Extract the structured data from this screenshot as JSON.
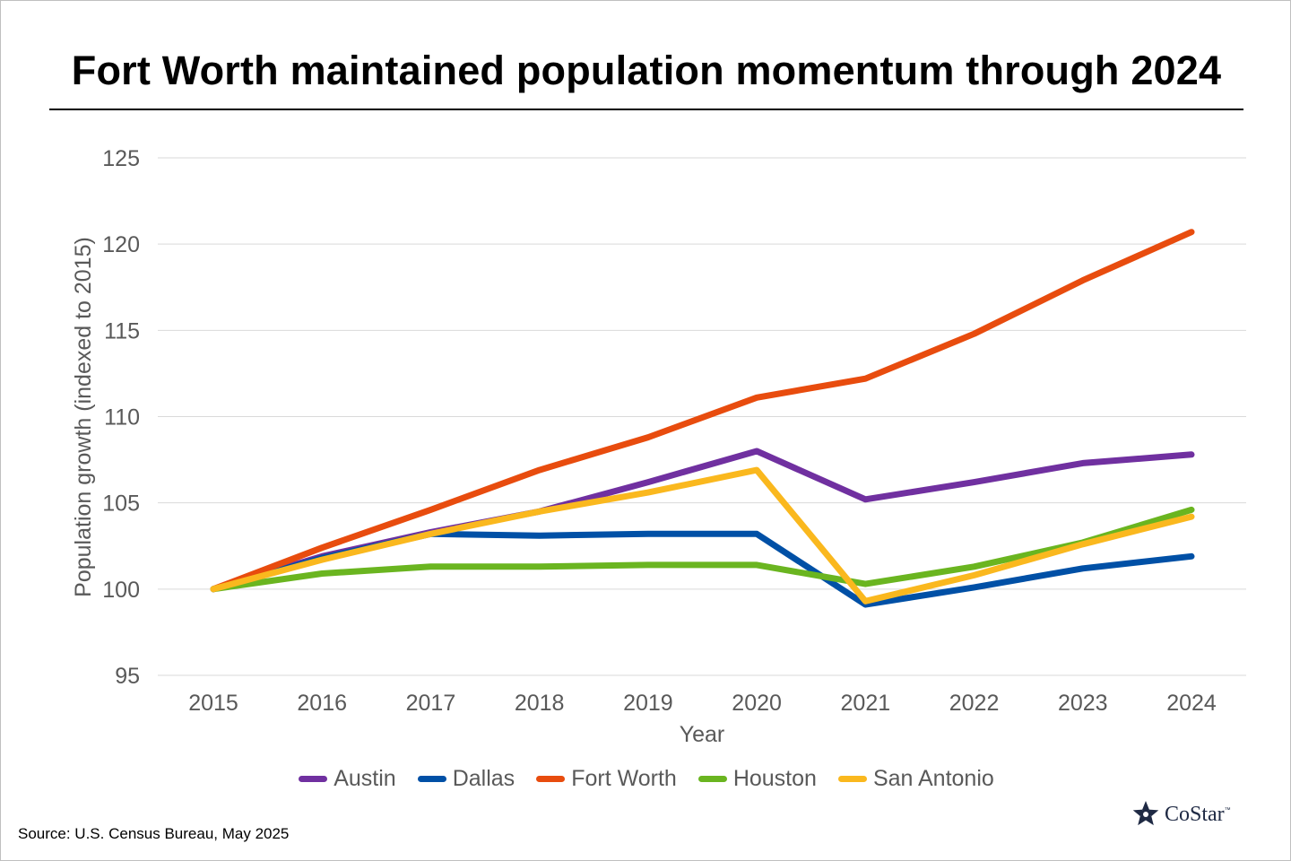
{
  "chart_data": {
    "type": "line",
    "title": "Fort Worth maintained population momentum through 2024",
    "xlabel": "Year",
    "ylabel": "Population growth (indexed to 2015)",
    "ylim": [
      95,
      125
    ],
    "yticks": [
      95,
      100,
      105,
      110,
      115,
      120,
      125
    ],
    "categories": [
      "2015",
      "2016",
      "2017",
      "2018",
      "2019",
      "2020",
      "2021",
      "2022",
      "2023",
      "2024"
    ],
    "grid": "horizontal",
    "legend_position": "bottom",
    "series": [
      {
        "name": "Austin",
        "color": "#7030a0",
        "values": [
          100,
          101.9,
          103.3,
          104.5,
          106.2,
          108.0,
          105.2,
          106.2,
          107.3,
          107.8
        ]
      },
      {
        "name": "Dallas",
        "color": "#0050a6",
        "values": [
          100,
          101.8,
          103.2,
          103.1,
          103.2,
          103.2,
          99.1,
          100.1,
          101.2,
          101.9
        ]
      },
      {
        "name": "Fort Worth",
        "color": "#e84c0e",
        "values": [
          100,
          102.4,
          104.6,
          106.9,
          108.8,
          111.1,
          112.2,
          114.8,
          117.9,
          120.7
        ]
      },
      {
        "name": "Houston",
        "color": "#6ab520",
        "values": [
          100,
          100.9,
          101.3,
          101.3,
          101.4,
          101.4,
          100.3,
          101.3,
          102.7,
          104.6
        ]
      },
      {
        "name": "San Antonio",
        "color": "#fab81e",
        "values": [
          100,
          101.7,
          103.2,
          104.5,
          105.6,
          106.9,
          99.3,
          100.8,
          102.6,
          104.2
        ]
      }
    ]
  },
  "footer": {
    "source": "Source: U.S. Census Bureau, May 2025",
    "logo_text": "CoStar",
    "logo_tm": "™"
  }
}
